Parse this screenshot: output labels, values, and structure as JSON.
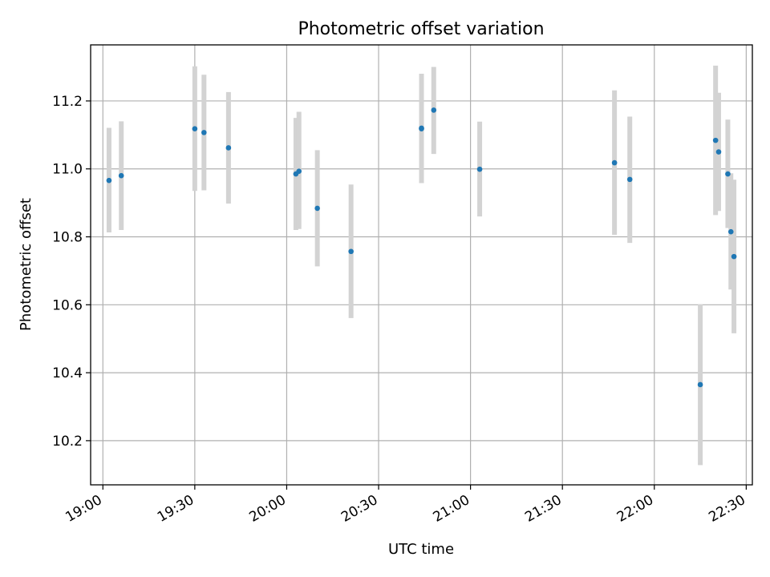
{
  "chart_data": {
    "type": "scatter",
    "title": "Photometric offset variation",
    "xlabel": "UTC time",
    "ylabel": "Photometric offset",
    "xlim": [
      "18:56",
      "22:32"
    ],
    "ylim": [
      10.07,
      11.365
    ],
    "xticks": [
      "19:00",
      "19:30",
      "20:00",
      "20:30",
      "21:00",
      "21:30",
      "22:00",
      "22:30"
    ],
    "yticks": [
      10.2,
      10.4,
      10.6,
      10.8,
      11.0,
      11.2
    ],
    "yticklabels": [
      "10.2",
      "10.4",
      "10.6",
      "10.8",
      "11.0",
      "11.2"
    ],
    "grid": true,
    "colors": {
      "point": "#1f77b4",
      "errorbar": "#d3d3d3",
      "grid": "#b0b0b0"
    },
    "points": [
      {
        "x": "19:02",
        "y": 10.966,
        "lo": 10.813,
        "hi": 11.121
      },
      {
        "x": "19:06",
        "y": 10.98,
        "lo": 10.82,
        "hi": 11.14
      },
      {
        "x": "19:30",
        "y": 11.118,
        "lo": 10.935,
        "hi": 11.302
      },
      {
        "x": "19:33",
        "y": 11.107,
        "lo": 10.937,
        "hi": 11.277
      },
      {
        "x": "19:41",
        "y": 11.062,
        "lo": 10.898,
        "hi": 11.226
      },
      {
        "x": "20:03",
        "y": 10.985,
        "lo": 10.82,
        "hi": 11.15
      },
      {
        "x": "20:04",
        "y": 10.993,
        "lo": 10.823,
        "hi": 11.168
      },
      {
        "x": "20:10",
        "y": 10.884,
        "lo": 10.713,
        "hi": 11.055
      },
      {
        "x": "20:21",
        "y": 10.757,
        "lo": 10.561,
        "hi": 10.954
      },
      {
        "x": "20:44",
        "y": 11.118,
        "lo": 10.958,
        "hi": 11.28
      },
      {
        "x": "20:44",
        "y": 11.12,
        "lo": 10.96,
        "hi": 11.28
      },
      {
        "x": "20:48",
        "y": 11.173,
        "lo": 11.044,
        "hi": 11.3
      },
      {
        "x": "21:03",
        "y": 10.999,
        "lo": 10.86,
        "hi": 11.139
      },
      {
        "x": "21:47",
        "y": 11.018,
        "lo": 10.806,
        "hi": 11.231
      },
      {
        "x": "21:52",
        "y": 10.969,
        "lo": 10.782,
        "hi": 11.154
      },
      {
        "x": "22:15",
        "y": 10.365,
        "lo": 10.128,
        "hi": 10.601
      },
      {
        "x": "22:20",
        "y": 11.084,
        "lo": 10.864,
        "hi": 11.304
      },
      {
        "x": "22:21",
        "y": 11.05,
        "lo": 10.876,
        "hi": 11.224
      },
      {
        "x": "22:24",
        "y": 10.985,
        "lo": 10.826,
        "hi": 11.145
      },
      {
        "x": "22:25",
        "y": 10.815,
        "lo": 10.645,
        "hi": 10.987
      },
      {
        "x": "22:26",
        "y": 10.742,
        "lo": 10.516,
        "hi": 10.968
      }
    ]
  }
}
